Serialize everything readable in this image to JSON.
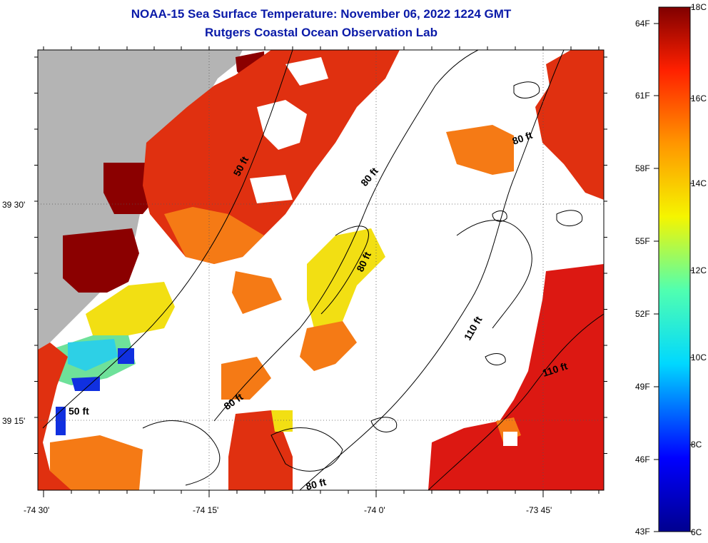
{
  "header": {
    "title": "NOAA-15 Sea Surface Temperature:  November 06, 2022 1224 GMT",
    "subtitle": "Rutgers Coastal Ocean Observation Lab"
  },
  "axes": {
    "lat_labels": [
      "39 30'",
      "39 15'"
    ],
    "lon_labels": [
      "-74 30'",
      "-74 15'",
      "-74 0'",
      "-73 45'"
    ]
  },
  "depth_labels": [
    "50 ft",
    "80 ft",
    "80 ft",
    "80 ft",
    "80 ft",
    "80 ft",
    "110 ft",
    "110 ft",
    "50 ft"
  ],
  "colorbar": {
    "fahrenheit": [
      "64F",
      "61F",
      "58F",
      "55F",
      "52F",
      "49F",
      "46F",
      "43F"
    ],
    "celsius": [
      "18C",
      "16C",
      "14C",
      "12C",
      "10C",
      "8C",
      "6C"
    ]
  },
  "colors": {
    "title": "#0a1aa8",
    "land": "#b4b4b4",
    "dark_red": "#8b0000",
    "red": "#dd1a10",
    "orange": "#f57a15",
    "yellow": "#f2df13"
  }
}
